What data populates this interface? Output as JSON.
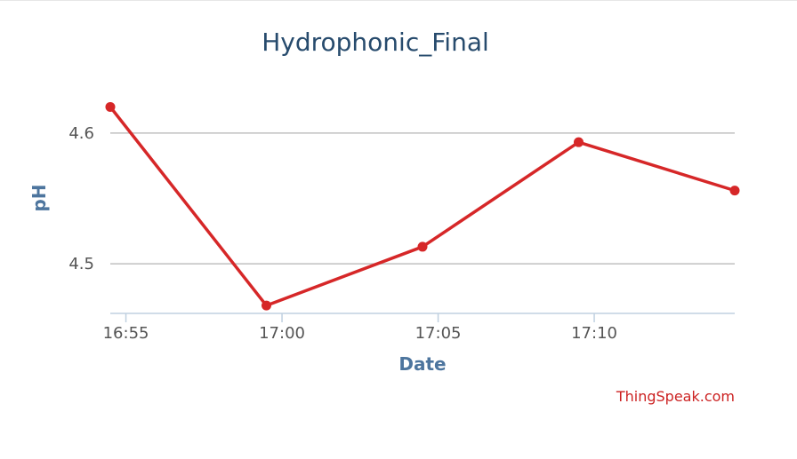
{
  "chart_data": {
    "type": "line",
    "title": "Hydrophonic_Final",
    "xlabel": "Date",
    "ylabel": "pH",
    "x": [
      "16:54:30",
      "16:59:30",
      "17:04:30",
      "17:09:30",
      "17:14:30"
    ],
    "values": [
      4.62,
      4.468,
      4.513,
      4.593,
      4.556
    ],
    "x_ticks": [
      "16:55",
      "17:00",
      "17:05",
      "17:10"
    ],
    "y_ticks": [
      4.5,
      4.6
    ],
    "ylim": [
      4.462,
      4.64
    ],
    "xlim": [
      "16:54:30",
      "17:14:30"
    ],
    "grid": true,
    "series_color": "#d62728"
  },
  "branding": {
    "credit": "ThingSpeak.com"
  }
}
